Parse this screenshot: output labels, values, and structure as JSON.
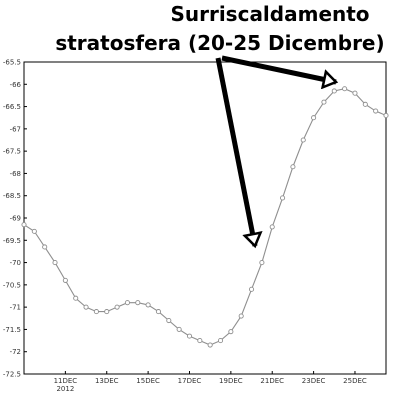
{
  "annotation": {
    "line1": "Surriscaldamento",
    "line2": "stratosfera (20-25 Dicembre)"
  },
  "chart_data": {
    "type": "line",
    "title": "",
    "xlabel": "",
    "ylabel": "",
    "grid": false,
    "legend": "none",
    "colors": {
      "line": "#8f8f8f",
      "marker_stroke": "#8f8f8f",
      "marker_fill": "#ffffff",
      "frame": "#000000",
      "arrows": "#000000"
    },
    "xlim": [
      0,
      35
    ],
    "ylim": [
      -72.5,
      -65.5
    ],
    "x_ticks": [
      {
        "x": 4,
        "label": "11DEC"
      },
      {
        "x": 8,
        "label": "13DEC"
      },
      {
        "x": 12,
        "label": "15DEC"
      },
      {
        "x": 16,
        "label": "17DEC"
      },
      {
        "x": 20,
        "label": "19DEC"
      },
      {
        "x": 24,
        "label": "21DEC"
      },
      {
        "x": 28,
        "label": "23DEC"
      },
      {
        "x": 32,
        "label": "25DEC"
      }
    ],
    "x_year_label": {
      "x": 4,
      "label": "2012"
    },
    "y_ticks": [
      -65.5,
      -66,
      -66.5,
      -67,
      -67.5,
      -68,
      -68.5,
      -69,
      -69.5,
      -70,
      -70.5,
      -71,
      -71.5,
      -72,
      -72.5
    ],
    "y_tick_labels": [
      "-65.5",
      "-66",
      "-66.5",
      "-67",
      "-67.5",
      "-68",
      "-68.5",
      "-69",
      "-69.5",
      "-70",
      "-70.5",
      "-71",
      "-71.5",
      "-72",
      "-72.5"
    ],
    "series": [
      {
        "x": [
          0,
          1,
          2,
          3,
          4,
          5,
          6,
          7,
          8,
          9,
          10,
          11,
          12,
          13,
          14,
          15,
          16,
          17,
          18,
          19,
          20,
          21,
          22,
          23,
          24,
          25,
          26,
          27,
          28,
          29,
          30,
          31,
          32,
          33,
          34,
          35
        ],
        "values": [
          -69.15,
          -69.3,
          -69.65,
          -70.0,
          -70.4,
          -70.8,
          -71.0,
          -71.1,
          -71.1,
          -71.0,
          -70.9,
          -70.9,
          -70.95,
          -71.1,
          -71.3,
          -71.5,
          -71.65,
          -71.75,
          -71.85,
          -71.75,
          -71.55,
          -71.2,
          -70.6,
          -70.0,
          -69.2,
          -68.55,
          -67.85,
          -67.25,
          -66.75,
          -66.4,
          -66.15,
          -66.1,
          -66.2,
          -66.45,
          -66.6,
          -66.7
        ]
      }
    ]
  }
}
